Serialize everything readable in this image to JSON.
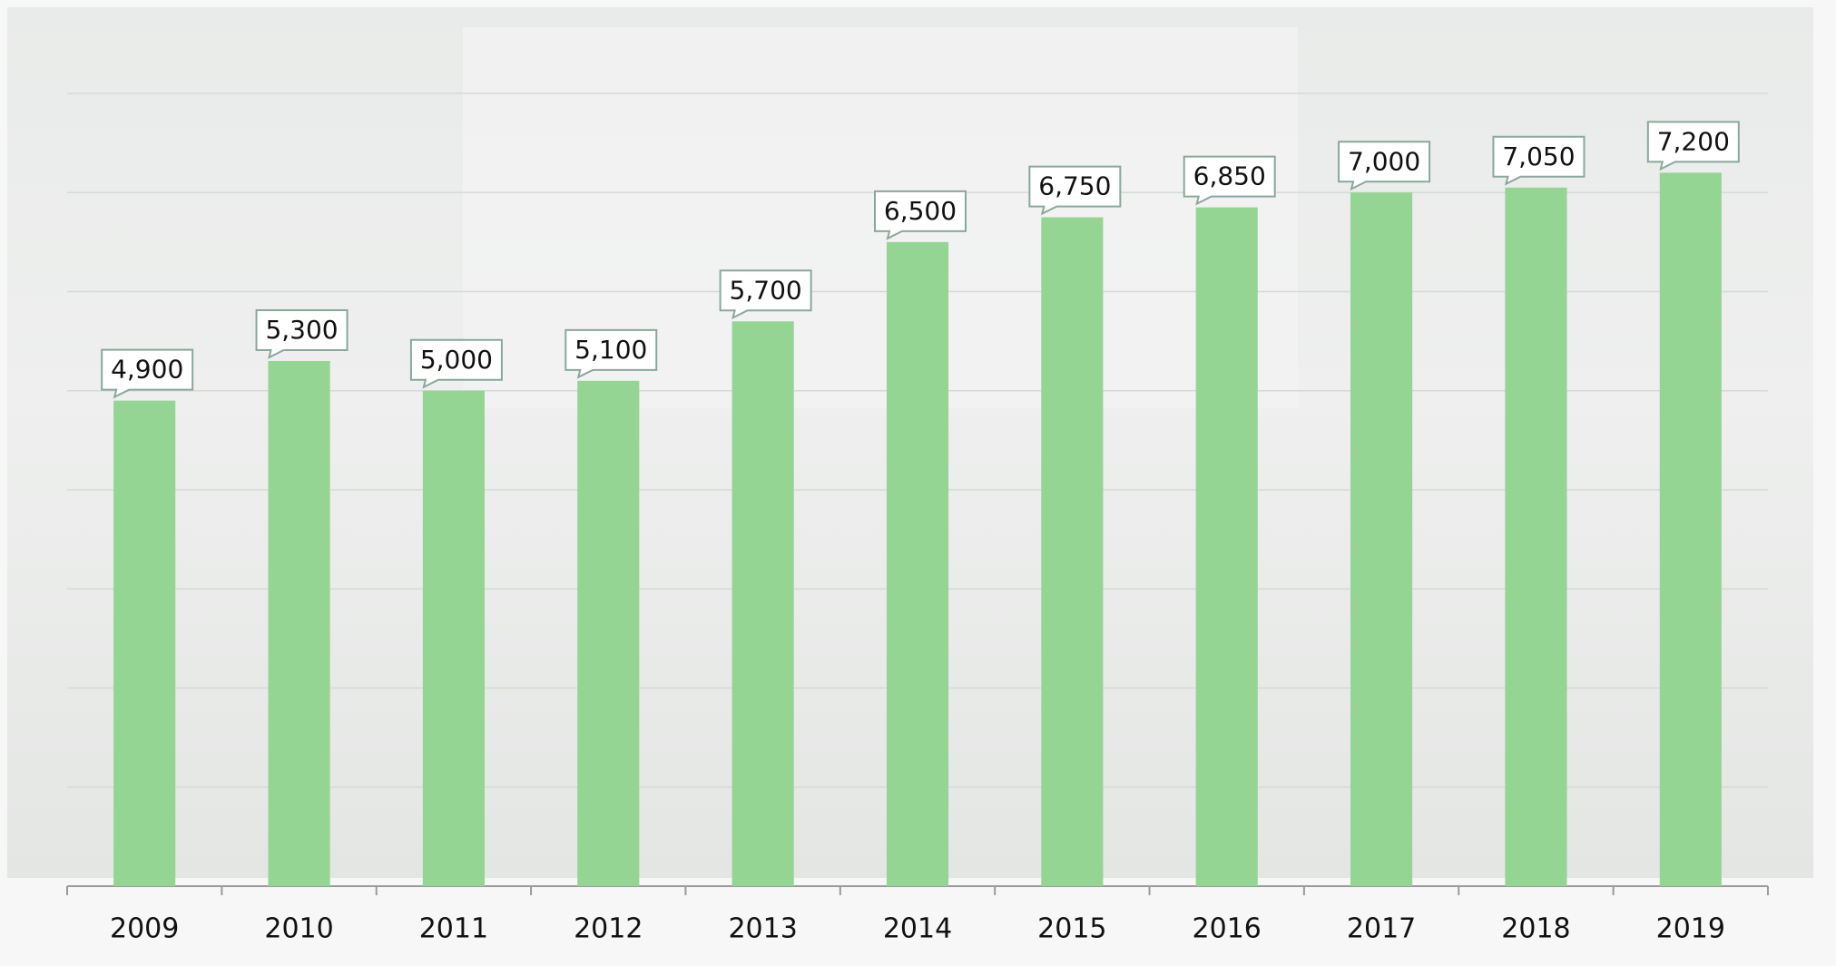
{
  "chart_data": {
    "type": "bar",
    "categories": [
      "2009",
      "2010",
      "2011",
      "2012",
      "2013",
      "2014",
      "2015",
      "2016",
      "2017",
      "2018",
      "2019"
    ],
    "values": [
      4900,
      5300,
      5000,
      5100,
      5700,
      6500,
      6750,
      6850,
      7000,
      7050,
      7200
    ],
    "value_labels": [
      "4,900",
      "5,300",
      "5,000",
      "5,100",
      "5,700",
      "6,500",
      "6,750",
      "6,850",
      "7,000",
      "7,050",
      "7,200"
    ],
    "color": "#95d593",
    "ylim": [
      0,
      8000
    ],
    "yticks": [
      0,
      1000,
      2000,
      3000,
      4000,
      5000,
      6000,
      7000,
      8000
    ],
    "grid": true
  }
}
